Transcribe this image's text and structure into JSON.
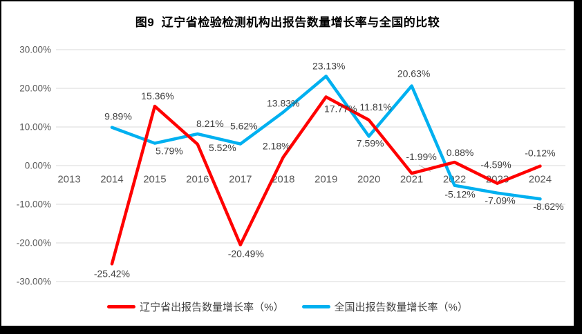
{
  "header": {
    "title": "图9  辽宁省检验检测机构出报告数量增长率与全国的比较"
  },
  "chart_data": {
    "type": "line",
    "title": "图9  辽宁省检验检测机构出报告数量增长率与全国的比较",
    "categories": [
      "2013",
      "2014",
      "2015",
      "2016",
      "2017",
      "2018",
      "2019",
      "2020",
      "2021",
      "2022",
      "2023",
      "2024"
    ],
    "y_axis": {
      "min": -30,
      "max": 30,
      "step": 10,
      "tick_labels": [
        "30.00%",
        "20.00%",
        "10.00%",
        "0.00%",
        "-10.00%",
        "-20.00%",
        "-30.00%"
      ],
      "tick_values": [
        30,
        20,
        10,
        0,
        -10,
        -20,
        -30
      ]
    },
    "grid": true,
    "legend_position": "bottom",
    "series": [
      {
        "name": "辽宁省出报告数量增长率（%）",
        "color": "#FF0000",
        "values": [
          null,
          -25.42,
          15.36,
          5.52,
          -20.49,
          2.18,
          17.77,
          11.81,
          -1.99,
          0.88,
          -4.59,
          -0.12
        ],
        "data_labels": [
          null,
          "-25.42%",
          "15.36%",
          "5.52%",
          "-20.49%",
          "2.18%",
          "17.77%",
          "11.81%",
          "-1.99%",
          "0.88%",
          "-4.59%",
          "-0.12%"
        ],
        "label_offsets": [
          null,
          [
            0,
            14
          ],
          [
            4,
            -15
          ],
          [
            36,
            5
          ],
          [
            8,
            13
          ],
          [
            -10,
            -16
          ],
          [
            21,
            17
          ],
          [
            10,
            -19
          ],
          [
            14,
            -24
          ],
          [
            8,
            -14
          ],
          [
            -2,
            -27
          ],
          [
            0,
            -19
          ]
        ]
      },
      {
        "name": "全国出报告数量增长率（%）",
        "color": "#00B0F0",
        "values": [
          null,
          9.89,
          5.79,
          8.21,
          5.62,
          13.83,
          23.13,
          7.59,
          20.63,
          -5.12,
          -7.09,
          -8.62
        ],
        "data_labels": [
          null,
          "9.89%",
          "5.79%",
          "8.21%",
          "5.62%",
          "13.83%",
          "23.13%",
          "7.59%",
          "20.63%",
          "-5.12%",
          "-7.09%",
          "-8.62%"
        ],
        "label_offsets": [
          null,
          [
            9,
            -16
          ],
          [
            21,
            11
          ],
          [
            18,
            -15
          ],
          [
            5,
            -26
          ],
          [
            0,
            -13
          ],
          [
            4,
            -15
          ],
          [
            2,
            10
          ],
          [
            3,
            -18
          ],
          [
            8,
            13
          ],
          [
            4,
            11
          ],
          [
            12,
            11
          ]
        ]
      }
    ],
    "colors": {
      "gridline": "#D9D9D9",
      "axis_text": "#595959",
      "data_label_text": "#404040",
      "leader_line": "#BFBFBF",
      "frame_border": "#000000"
    }
  },
  "legend": {
    "items": [
      {
        "label": "辽宁省出报告数量增长率（%）",
        "color": "#FF0000"
      },
      {
        "label": "全国出报告数量增长率（%）",
        "color": "#00B0F0"
      }
    ]
  }
}
